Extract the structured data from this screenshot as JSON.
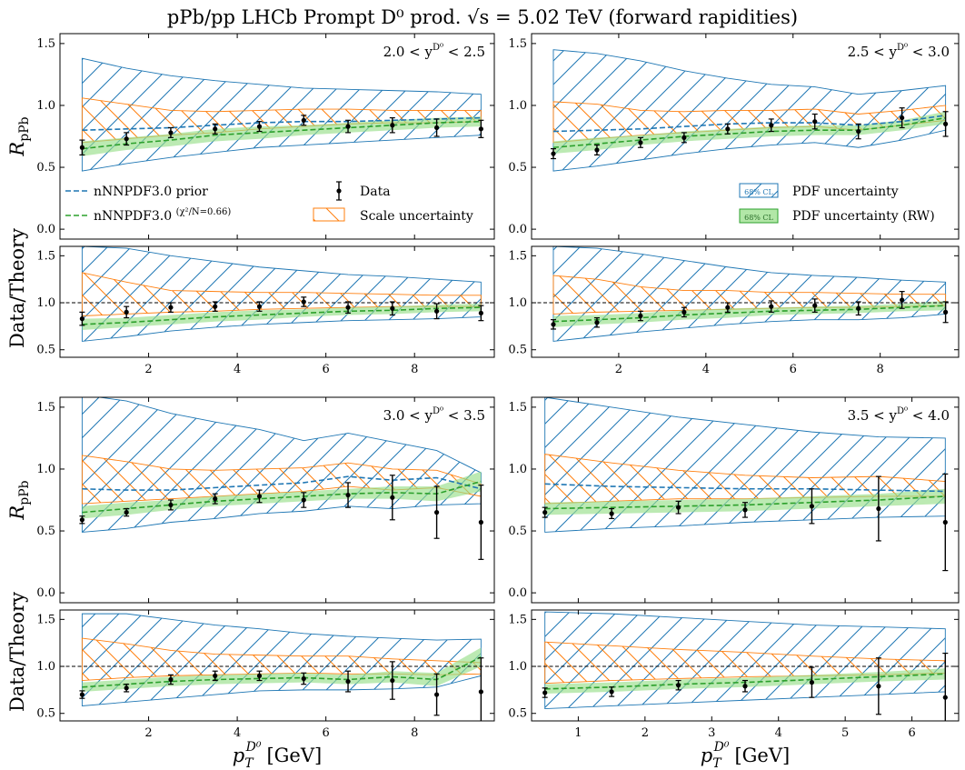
{
  "figure": {
    "title": "pPb/pp LHCb Prompt D⁰ prod. √s = 5.02 TeV (forward rapidities)",
    "ylabel_ratio": "R",
    "ylabel_ratio_sub": "pPb",
    "ylabel_lower": "Data/Theory",
    "xlabel_main": "p",
    "xlabel_sub": "T",
    "xlabel_sup": "D⁰",
    "xlabel_unit": "[GeV]"
  },
  "legend": {
    "prior": "nNNPDF3.0 prior",
    "rw": "nNNPDF3.0",
    "rw_chi": "(χ²/N=0.66)",
    "data": "Data",
    "scale": "Scale uncertainty",
    "pdf": "PDF uncertainty",
    "pdf_rw": "PDF uncertainty (RW)",
    "ci_badge": "68% CL"
  },
  "colors": {
    "prior": "#1f77b4",
    "rw": "#2ca02c",
    "rw_band": "#98df8a",
    "scale": "#ff7f0e",
    "data": "#000000"
  },
  "chart_data": [
    {
      "type": "line",
      "panel": "2.0 < y^D0 < 2.5",
      "label": "2.0 < y",
      "label_sup": "D⁰",
      "label_tail": " < 2.5",
      "xlim": [
        0,
        9.8
      ],
      "xticks": [
        2,
        4,
        6,
        8
      ],
      "ylim_top": [
        -0.08,
        1.58
      ],
      "yticks_top": [
        0.0,
        0.5,
        1.0,
        1.5
      ],
      "ylim_bottom": [
        0.42,
        1.6
      ],
      "yticks_bottom": [
        0.5,
        1.0,
        1.5
      ],
      "x": [
        0.5,
        1.5,
        2.5,
        3.5,
        4.5,
        5.5,
        6.5,
        7.5,
        8.5,
        9.5
      ],
      "prior": [
        0.8,
        0.81,
        0.82,
        0.84,
        0.86,
        0.87,
        0.87,
        0.88,
        0.89,
        0.9
      ],
      "rw": [
        0.65,
        0.69,
        0.72,
        0.76,
        0.78,
        0.8,
        0.82,
        0.84,
        0.86,
        0.87
      ],
      "rw_band": [
        0.06,
        0.05,
        0.05,
        0.05,
        0.05,
        0.04,
        0.04,
        0.04,
        0.04,
        0.04
      ],
      "pdf_hi": [
        1.38,
        1.3,
        1.24,
        1.2,
        1.17,
        1.14,
        1.13,
        1.12,
        1.11,
        1.09
      ],
      "pdf_lo": [
        0.47,
        0.53,
        0.58,
        0.62,
        0.66,
        0.68,
        0.7,
        0.72,
        0.74,
        0.76
      ],
      "scale_hi": [
        1.06,
        1.01,
        0.96,
        0.95,
        0.96,
        0.97,
        0.97,
        0.96,
        0.96,
        0.96
      ],
      "scale_lo": [
        0.7,
        0.73,
        0.76,
        0.78,
        0.81,
        0.83,
        0.85,
        0.86,
        0.86,
        0.87
      ],
      "data_y": [
        0.66,
        0.73,
        0.78,
        0.81,
        0.83,
        0.88,
        0.83,
        0.84,
        0.82,
        0.81
      ],
      "data_err": [
        0.06,
        0.05,
        0.04,
        0.04,
        0.04,
        0.04,
        0.05,
        0.06,
        0.07,
        0.07
      ],
      "ratio_y": [
        0.83,
        0.9,
        0.95,
        0.96,
        0.96,
        1.01,
        0.95,
        0.94,
        0.91,
        0.89
      ],
      "ratio_err": [
        0.07,
        0.06,
        0.05,
        0.05,
        0.05,
        0.05,
        0.06,
        0.07,
        0.08,
        0.08
      ],
      "ratio_rw": [
        0.77,
        0.79,
        0.82,
        0.85,
        0.87,
        0.89,
        0.91,
        0.92,
        0.94,
        0.95
      ],
      "ratio_rw_band": [
        0.06,
        0.05,
        0.05,
        0.05,
        0.05,
        0.04,
        0.04,
        0.04,
        0.04,
        0.04
      ],
      "ratio_pdf_hi": [
        1.6,
        1.58,
        1.5,
        1.44,
        1.38,
        1.34,
        1.3,
        1.28,
        1.25,
        1.22
      ],
      "ratio_pdf_lo": [
        0.59,
        0.64,
        0.7,
        0.74,
        0.77,
        0.79,
        0.81,
        0.82,
        0.83,
        0.85
      ],
      "ratio_scale_hi": [
        1.32,
        1.22,
        1.13,
        1.12,
        1.11,
        1.11,
        1.1,
        1.09,
        1.08,
        1.08
      ],
      "ratio_scale_lo": [
        0.86,
        0.88,
        0.9,
        0.91,
        0.93,
        0.94,
        0.95,
        0.96,
        0.96,
        0.96
      ]
    },
    {
      "type": "line",
      "panel": "2.5 < y^D0 < 3.0",
      "label": "2.5 < y",
      "label_sup": "D⁰",
      "label_tail": " < 3.0",
      "xlim": [
        0,
        9.8
      ],
      "xticks": [
        2,
        4,
        6,
        8
      ],
      "ylim_top": [
        -0.08,
        1.58
      ],
      "yticks_top": [
        0.0,
        0.5,
        1.0,
        1.5
      ],
      "ylim_bottom": [
        0.42,
        1.6
      ],
      "yticks_bottom": [
        0.5,
        1.0,
        1.5
      ],
      "x": [
        0.5,
        1.5,
        2.5,
        3.5,
        4.5,
        5.5,
        6.5,
        7.5,
        8.5,
        9.5
      ],
      "prior": [
        0.79,
        0.8,
        0.81,
        0.83,
        0.85,
        0.86,
        0.86,
        0.84,
        0.87,
        0.92
      ],
      "rw": [
        0.66,
        0.69,
        0.72,
        0.75,
        0.77,
        0.79,
        0.8,
        0.8,
        0.84,
        0.9
      ],
      "rw_band": [
        0.05,
        0.05,
        0.04,
        0.04,
        0.04,
        0.04,
        0.04,
        0.04,
        0.04,
        0.05
      ],
      "pdf_hi": [
        1.45,
        1.42,
        1.36,
        1.28,
        1.22,
        1.17,
        1.15,
        1.09,
        1.12,
        1.16
      ],
      "pdf_lo": [
        0.47,
        0.51,
        0.56,
        0.61,
        0.65,
        0.68,
        0.7,
        0.66,
        0.72,
        0.8
      ],
      "scale_hi": [
        1.03,
        1.01,
        0.96,
        0.95,
        0.96,
        0.96,
        0.97,
        0.93,
        0.96,
        1.0
      ],
      "scale_lo": [
        0.7,
        0.73,
        0.76,
        0.78,
        0.8,
        0.82,
        0.83,
        0.8,
        0.84,
        0.88
      ],
      "data_y": [
        0.61,
        0.64,
        0.7,
        0.74,
        0.81,
        0.84,
        0.87,
        0.79,
        0.9,
        0.85
      ],
      "data_err": [
        0.04,
        0.04,
        0.04,
        0.04,
        0.04,
        0.05,
        0.06,
        0.06,
        0.08,
        0.1
      ],
      "ratio_y": [
        0.77,
        0.79,
        0.86,
        0.9,
        0.95,
        0.96,
        0.97,
        0.94,
        1.03,
        0.9
      ],
      "ratio_err": [
        0.05,
        0.05,
        0.05,
        0.05,
        0.05,
        0.06,
        0.07,
        0.07,
        0.09,
        0.11
      ],
      "ratio_rw": [
        0.8,
        0.82,
        0.84,
        0.87,
        0.89,
        0.91,
        0.92,
        0.93,
        0.95,
        0.97
      ],
      "ratio_rw_band": [
        0.06,
        0.05,
        0.05,
        0.05,
        0.05,
        0.04,
        0.04,
        0.04,
        0.04,
        0.05
      ],
      "ratio_pdf_hi": [
        1.6,
        1.58,
        1.52,
        1.45,
        1.38,
        1.32,
        1.29,
        1.27,
        1.24,
        1.22
      ],
      "ratio_pdf_lo": [
        0.59,
        0.64,
        0.69,
        0.73,
        0.77,
        0.8,
        0.82,
        0.82,
        0.84,
        0.88
      ],
      "ratio_scale_hi": [
        1.29,
        1.25,
        1.17,
        1.13,
        1.13,
        1.11,
        1.11,
        1.1,
        1.09,
        1.09
      ],
      "ratio_scale_lo": [
        0.88,
        0.9,
        0.91,
        0.92,
        0.93,
        0.94,
        0.95,
        0.95,
        0.96,
        0.97
      ]
    },
    {
      "type": "line",
      "panel": "3.0 < y^D0 < 3.5",
      "label": "3.0 < y",
      "label_sup": "D⁰",
      "label_tail": " < 3.5",
      "xlim": [
        0,
        9.8
      ],
      "xticks": [
        2,
        4,
        6,
        8
      ],
      "ylim_top": [
        -0.08,
        1.58
      ],
      "yticks_top": [
        0.0,
        0.5,
        1.0,
        1.5
      ],
      "ylim_bottom": [
        0.42,
        1.6
      ],
      "yticks_bottom": [
        0.5,
        1.0,
        1.5
      ],
      "x": [
        0.5,
        1.5,
        2.5,
        3.5,
        4.5,
        5.5,
        6.5,
        7.5,
        8.5,
        9.5
      ],
      "prior": [
        0.84,
        0.83,
        0.83,
        0.85,
        0.87,
        0.89,
        0.94,
        0.91,
        0.93,
        0.84
      ],
      "rw": [
        0.65,
        0.68,
        0.71,
        0.74,
        0.76,
        0.78,
        0.8,
        0.81,
        0.8,
        0.9
      ],
      "rw_band": [
        0.05,
        0.05,
        0.04,
        0.04,
        0.04,
        0.04,
        0.04,
        0.05,
        0.06,
        0.08
      ],
      "pdf_hi": [
        1.6,
        1.55,
        1.45,
        1.38,
        1.32,
        1.23,
        1.29,
        1.22,
        1.15,
        0.97
      ],
      "pdf_lo": [
        0.49,
        0.52,
        0.57,
        0.6,
        0.64,
        0.66,
        0.7,
        0.68,
        0.71,
        0.72
      ],
      "scale_hi": [
        1.11,
        1.06,
        1.0,
        0.99,
        1.0,
        1.01,
        1.05,
        1.0,
        0.99,
        0.88
      ],
      "scale_lo": [
        0.72,
        0.74,
        0.76,
        0.78,
        0.8,
        0.82,
        0.86,
        0.83,
        0.85,
        0.78
      ],
      "data_y": [
        0.59,
        0.65,
        0.71,
        0.76,
        0.78,
        0.75,
        0.79,
        0.77,
        0.65,
        0.57
      ],
      "data_err": [
        0.03,
        0.03,
        0.04,
        0.04,
        0.05,
        0.06,
        0.1,
        0.18,
        0.21,
        0.3
      ],
      "ratio_y": [
        0.7,
        0.77,
        0.86,
        0.9,
        0.9,
        0.87,
        0.84,
        0.85,
        0.7,
        0.73
      ],
      "ratio_err": [
        0.04,
        0.04,
        0.05,
        0.05,
        0.05,
        0.06,
        0.11,
        0.2,
        0.22,
        0.36
      ],
      "ratio_rw": [
        0.78,
        0.81,
        0.84,
        0.86,
        0.87,
        0.88,
        0.86,
        0.89,
        0.86,
        1.1
      ],
      "ratio_rw_band": [
        0.05,
        0.05,
        0.05,
        0.05,
        0.05,
        0.05,
        0.05,
        0.06,
        0.07,
        0.1
      ],
      "ratio_pdf_hi": [
        1.56,
        1.56,
        1.5,
        1.44,
        1.4,
        1.35,
        1.32,
        1.3,
        1.28,
        1.29
      ],
      "ratio_pdf_lo": [
        0.58,
        0.62,
        0.66,
        0.7,
        0.74,
        0.75,
        0.75,
        0.76,
        0.78,
        0.9
      ],
      "ratio_scale_hi": [
        1.3,
        1.24,
        1.17,
        1.13,
        1.12,
        1.11,
        1.11,
        1.08,
        1.06,
        1.04
      ],
      "ratio_scale_lo": [
        0.85,
        0.88,
        0.9,
        0.91,
        0.92,
        0.93,
        0.92,
        0.92,
        0.91,
        0.92
      ]
    },
    {
      "type": "line",
      "panel": "3.5 < y^D0 < 4.0",
      "label": "3.5 < y",
      "label_sup": "D⁰",
      "label_tail": " < 4.0",
      "xlim": [
        0.3,
        6.7
      ],
      "xticks": [
        1,
        2,
        3,
        4,
        5,
        6
      ],
      "ylim_top": [
        -0.08,
        1.58
      ],
      "yticks_top": [
        0.0,
        0.5,
        1.0,
        1.5
      ],
      "ylim_bottom": [
        0.42,
        1.6
      ],
      "yticks_bottom": [
        0.5,
        1.0,
        1.5
      ],
      "x": [
        0.5,
        1.5,
        2.5,
        3.5,
        4.5,
        5.5,
        6.5
      ],
      "prior": [
        0.88,
        0.86,
        0.85,
        0.84,
        0.84,
        0.83,
        0.82
      ],
      "rw": [
        0.68,
        0.69,
        0.7,
        0.71,
        0.73,
        0.75,
        0.78
      ],
      "rw_band": [
        0.05,
        0.05,
        0.05,
        0.05,
        0.05,
        0.05,
        0.06
      ],
      "pdf_hi": [
        1.58,
        1.5,
        1.42,
        1.36,
        1.3,
        1.26,
        1.25
      ],
      "pdf_lo": [
        0.49,
        0.52,
        0.54,
        0.57,
        0.59,
        0.61,
        0.62
      ],
      "scale_hi": [
        1.12,
        1.05,
        0.99,
        0.95,
        0.93,
        0.94,
        0.9
      ],
      "scale_lo": [
        0.72,
        0.74,
        0.76,
        0.76,
        0.77,
        0.78,
        0.78
      ],
      "data_y": [
        0.65,
        0.64,
        0.69,
        0.67,
        0.7,
        0.68,
        0.57
      ],
      "data_err": [
        0.04,
        0.04,
        0.05,
        0.06,
        0.14,
        0.26,
        0.39
      ],
      "ratio_y": [
        0.72,
        0.73,
        0.8,
        0.79,
        0.83,
        0.79,
        0.67
      ],
      "ratio_err": [
        0.05,
        0.05,
        0.05,
        0.06,
        0.16,
        0.3,
        0.47
      ],
      "ratio_rw": [
        0.76,
        0.78,
        0.81,
        0.83,
        0.86,
        0.89,
        0.92
      ],
      "ratio_rw_band": [
        0.05,
        0.05,
        0.05,
        0.05,
        0.05,
        0.05,
        0.06
      ],
      "ratio_pdf_hi": [
        1.58,
        1.56,
        1.52,
        1.48,
        1.44,
        1.42,
        1.4
      ],
      "ratio_pdf_lo": [
        0.55,
        0.58,
        0.61,
        0.64,
        0.67,
        0.7,
        0.73
      ],
      "ratio_scale_hi": [
        1.26,
        1.22,
        1.18,
        1.15,
        1.11,
        1.08,
        1.06
      ],
      "ratio_scale_lo": [
        0.82,
        0.85,
        0.87,
        0.89,
        0.9,
        0.91,
        0.93
      ]
    }
  ]
}
